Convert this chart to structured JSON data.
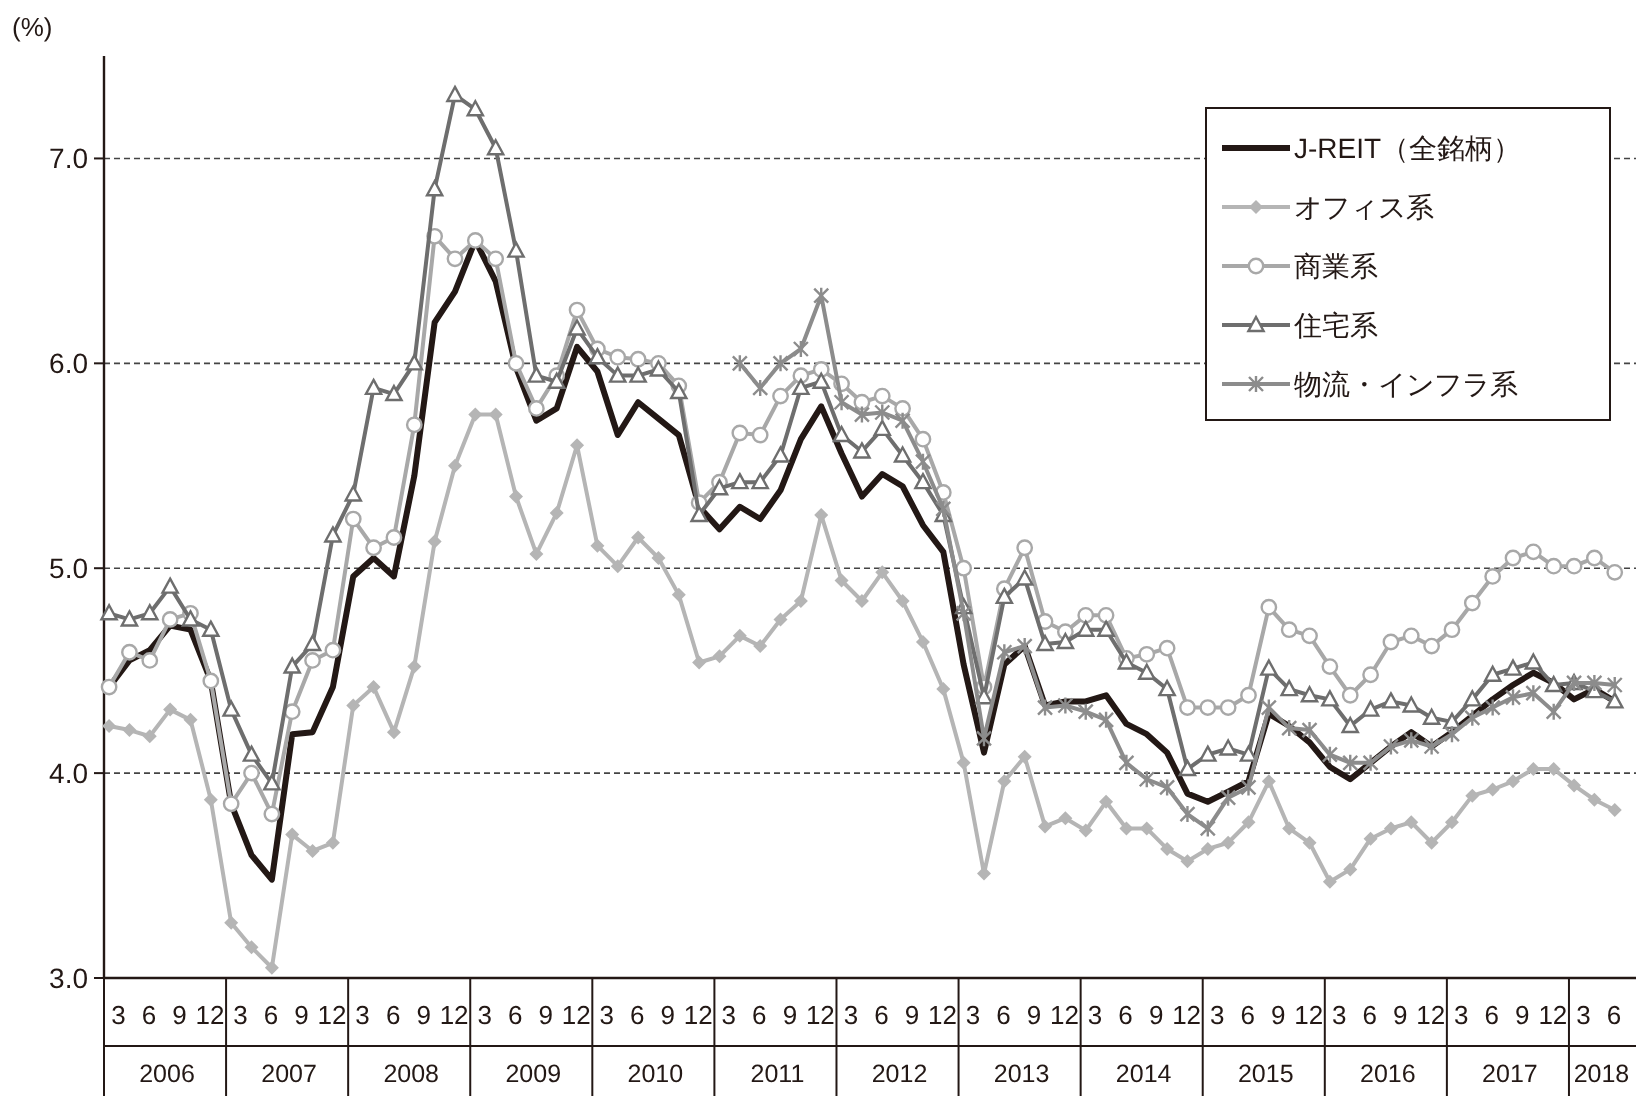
{
  "chart_data": {
    "type": "line",
    "ylabel": "(%)",
    "x": [
      "2006-01",
      "2006-03",
      "2006-05",
      "2006-07",
      "2006-09",
      "2006-11",
      "2007-01",
      "2007-03",
      "2007-05",
      "2007-07",
      "2007-09",
      "2007-11",
      "2008-01",
      "2008-03",
      "2008-05",
      "2008-07",
      "2008-09",
      "2008-11",
      "2009-01",
      "2009-03",
      "2009-05",
      "2009-07",
      "2009-09",
      "2009-11",
      "2010-01",
      "2010-03",
      "2010-05",
      "2010-07",
      "2010-09",
      "2010-11",
      "2011-01",
      "2011-03",
      "2011-05",
      "2011-07",
      "2011-09",
      "2011-11",
      "2012-01",
      "2012-03",
      "2012-05",
      "2012-07",
      "2012-09",
      "2012-11",
      "2013-01",
      "2013-03",
      "2013-05",
      "2013-07",
      "2013-09",
      "2013-11",
      "2014-01",
      "2014-03",
      "2014-05",
      "2014-07",
      "2014-09",
      "2014-11",
      "2015-01",
      "2015-03",
      "2015-05",
      "2015-07",
      "2015-09",
      "2015-11",
      "2016-01",
      "2016-03",
      "2016-05",
      "2016-07",
      "2016-09",
      "2016-11",
      "2017-01",
      "2017-03",
      "2017-05",
      "2017-07",
      "2017-09",
      "2017-11",
      "2018-01",
      "2018-03",
      "2018-05"
    ],
    "series": [
      {
        "name": "J-REIT（全銘柄）",
        "color": "#231815",
        "marker": "none",
        "values": [
          4.42,
          4.55,
          4.6,
          4.72,
          4.7,
          4.45,
          3.85,
          3.6,
          3.48,
          4.19,
          4.2,
          4.42,
          4.96,
          5.05,
          4.96,
          5.45,
          6.2,
          6.35,
          6.6,
          6.4,
          5.98,
          5.72,
          5.78,
          6.08,
          5.96,
          5.65,
          5.81,
          5.73,
          5.65,
          5.3,
          5.19,
          5.3,
          5.24,
          5.38,
          5.63,
          5.79,
          5.56,
          5.35,
          5.46,
          5.4,
          5.21,
          5.08,
          4.53,
          4.1,
          4.53,
          4.62,
          4.33,
          4.35,
          4.35,
          4.38,
          4.24,
          4.19,
          4.1,
          3.9,
          3.86,
          3.91,
          3.96,
          4.29,
          4.23,
          4.15,
          4.03,
          3.97,
          4.05,
          4.13,
          4.2,
          4.13,
          4.2,
          4.28,
          4.36,
          4.43,
          4.49,
          4.44,
          4.36,
          4.41,
          4.35
        ]
      },
      {
        "name": "オフィス系",
        "color": "#b5b5b5",
        "marker": "diamond",
        "values": [
          4.23,
          4.21,
          4.18,
          4.31,
          4.26,
          3.87,
          3.27,
          3.15,
          3.05,
          3.7,
          3.62,
          3.66,
          4.33,
          4.42,
          4.2,
          4.52,
          5.13,
          5.5,
          5.75,
          5.75,
          5.35,
          5.07,
          5.27,
          5.6,
          5.11,
          5.01,
          5.15,
          5.05,
          4.87,
          4.54,
          4.57,
          4.67,
          4.62,
          4.75,
          4.84,
          5.26,
          4.94,
          4.84,
          4.98,
          4.84,
          4.64,
          4.41,
          4.05,
          3.51,
          3.96,
          4.08,
          3.74,
          3.78,
          3.72,
          3.86,
          3.73,
          3.73,
          3.63,
          3.57,
          3.63,
          3.66,
          3.76,
          3.96,
          3.73,
          3.66,
          3.47,
          3.53,
          3.68,
          3.73,
          3.76,
          3.66,
          3.76,
          3.89,
          3.92,
          3.96,
          4.02,
          4.02,
          3.94,
          3.87,
          3.82
        ]
      },
      {
        "name": "商業系",
        "color": "#a8a8a8",
        "marker": "circle",
        "values": [
          4.42,
          4.59,
          4.55,
          4.75,
          4.78,
          4.45,
          3.85,
          4.0,
          3.8,
          4.3,
          4.55,
          4.6,
          5.24,
          5.1,
          5.15,
          5.7,
          6.62,
          6.51,
          6.6,
          6.51,
          6.0,
          5.78,
          5.94,
          6.26,
          6.07,
          6.03,
          6.02,
          6.0,
          5.89,
          5.32,
          5.42,
          5.66,
          5.65,
          5.84,
          5.94,
          5.97,
          5.9,
          5.81,
          5.84,
          5.78,
          5.63,
          5.37,
          5.0,
          4.42,
          4.9,
          5.1,
          4.74,
          4.69,
          4.77,
          4.77,
          4.56,
          4.58,
          4.61,
          4.32,
          4.32,
          4.32,
          4.38,
          4.81,
          4.7,
          4.67,
          4.52,
          4.38,
          4.48,
          4.64,
          4.67,
          4.62,
          4.7,
          4.83,
          4.96,
          5.05,
          5.08,
          5.01,
          5.01,
          5.05,
          4.98
        ]
      },
      {
        "name": "住宅系",
        "color": "#6e6e6e",
        "marker": "triangle",
        "values": [
          4.78,
          4.75,
          4.78,
          4.91,
          4.75,
          4.7,
          4.31,
          4.09,
          3.95,
          4.52,
          4.63,
          5.16,
          5.36,
          5.88,
          5.85,
          6.0,
          6.85,
          7.31,
          7.24,
          7.05,
          6.55,
          5.94,
          5.91,
          6.17,
          6.03,
          5.94,
          5.94,
          5.97,
          5.86,
          5.26,
          5.39,
          5.42,
          5.42,
          5.55,
          5.88,
          5.91,
          5.65,
          5.57,
          5.68,
          5.55,
          5.42,
          5.26,
          4.81,
          4.37,
          4.86,
          4.95,
          4.63,
          4.64,
          4.7,
          4.7,
          4.54,
          4.49,
          4.41,
          4.02,
          4.09,
          4.12,
          4.09,
          4.51,
          4.41,
          4.38,
          4.36,
          4.23,
          4.31,
          4.35,
          4.33,
          4.27,
          4.25,
          4.36,
          4.48,
          4.51,
          4.54,
          4.43,
          4.44,
          4.4,
          4.35
        ]
      },
      {
        "name": "物流・インフラ系",
        "color": "#8c8c8c",
        "marker": "cross",
        "values": [
          null,
          null,
          null,
          null,
          null,
          null,
          null,
          null,
          null,
          null,
          null,
          null,
          null,
          null,
          null,
          null,
          null,
          null,
          null,
          null,
          null,
          null,
          null,
          null,
          null,
          null,
          null,
          null,
          null,
          null,
          null,
          6.0,
          5.88,
          6.0,
          6.07,
          6.33,
          5.81,
          5.75,
          5.76,
          5.72,
          5.52,
          5.29,
          4.78,
          4.17,
          4.59,
          4.62,
          4.32,
          4.33,
          4.3,
          4.26,
          4.05,
          3.97,
          3.93,
          3.8,
          3.73,
          3.88,
          3.93,
          4.32,
          4.22,
          4.21,
          4.09,
          4.05,
          4.05,
          4.13,
          4.16,
          4.13,
          4.19,
          4.27,
          4.32,
          4.37,
          4.39,
          4.3,
          4.44,
          4.44,
          4.43
        ]
      }
    ],
    "xlim": [
      "2006-01-01",
      "2018-07-01"
    ],
    "xticks": [
      {
        "value": "2006-03",
        "label": "3"
      },
      {
        "value": "2006-06",
        "label": "6"
      },
      {
        "value": "2006-09",
        "label": "9"
      },
      {
        "value": "2006-12",
        "label": "12"
      },
      {
        "value": "2007-03",
        "label": "3"
      },
      {
        "value": "2007-06",
        "label": "6"
      },
      {
        "value": "2007-09",
        "label": "9"
      },
      {
        "value": "2007-12",
        "label": "12"
      },
      {
        "value": "2008-03",
        "label": "3"
      },
      {
        "value": "2008-06",
        "label": "6"
      },
      {
        "value": "2008-09",
        "label": "9"
      },
      {
        "value": "2008-12",
        "label": "12"
      },
      {
        "value": "2009-03",
        "label": "3"
      },
      {
        "value": "2009-06",
        "label": "6"
      },
      {
        "value": "2009-09",
        "label": "9"
      },
      {
        "value": "2009-12",
        "label": "12"
      },
      {
        "value": "2010-03",
        "label": "3"
      },
      {
        "value": "2010-06",
        "label": "6"
      },
      {
        "value": "2010-09",
        "label": "9"
      },
      {
        "value": "2010-12",
        "label": "12"
      },
      {
        "value": "2011-03",
        "label": "3"
      },
      {
        "value": "2011-06",
        "label": "6"
      },
      {
        "value": "2011-09",
        "label": "9"
      },
      {
        "value": "2011-12",
        "label": "12"
      },
      {
        "value": "2012-03",
        "label": "3"
      },
      {
        "value": "2012-06",
        "label": "6"
      },
      {
        "value": "2012-09",
        "label": "9"
      },
      {
        "value": "2012-12",
        "label": "12"
      },
      {
        "value": "2013-03",
        "label": "3"
      },
      {
        "value": "2013-06",
        "label": "6"
      },
      {
        "value": "2013-09",
        "label": "9"
      },
      {
        "value": "2013-12",
        "label": "12"
      },
      {
        "value": "2014-03",
        "label": "3"
      },
      {
        "value": "2014-06",
        "label": "6"
      },
      {
        "value": "2014-09",
        "label": "9"
      },
      {
        "value": "2014-12",
        "label": "12"
      },
      {
        "value": "2015-03",
        "label": "3"
      },
      {
        "value": "2015-06",
        "label": "6"
      },
      {
        "value": "2015-09",
        "label": "9"
      },
      {
        "value": "2015-12",
        "label": "12"
      },
      {
        "value": "2016-03",
        "label": "3"
      },
      {
        "value": "2016-06",
        "label": "6"
      },
      {
        "value": "2016-09",
        "label": "9"
      },
      {
        "value": "2016-12",
        "label": "12"
      },
      {
        "value": "2017-03",
        "label": "3"
      },
      {
        "value": "2017-06",
        "label": "6"
      },
      {
        "value": "2017-09",
        "label": "9"
      },
      {
        "value": "2017-12",
        "label": "12"
      },
      {
        "value": "2018-03",
        "label": "3"
      },
      {
        "value": "2018-06",
        "label": "6"
      }
    ],
    "x2lim": [
      "2006-01-01",
      "2018-07-01"
    ],
    "x2ticks": [
      {
        "value": "2006-07-01",
        "label": "2006"
      },
      {
        "value": "2007-07-01",
        "label": "2007"
      },
      {
        "value": "2008-07-01",
        "label": "2008"
      },
      {
        "value": "2009-07-01",
        "label": "2009"
      },
      {
        "value": "2010-07-01",
        "label": "2010"
      },
      {
        "value": "2011-07-01",
        "label": "2011"
      },
      {
        "value": "2012-07-01",
        "label": "2012"
      },
      {
        "value": "2013-07-01",
        "label": "2013"
      },
      {
        "value": "2014-07-01",
        "label": "2014"
      },
      {
        "value": "2015-07-01",
        "label": "2015"
      },
      {
        "value": "2016-07-01",
        "label": "2016"
      },
      {
        "value": "2017-07-01",
        "label": "2017"
      },
      {
        "value": "2018-04-01",
        "label": "2018"
      }
    ],
    "ylim": [
      3,
      7.5
    ],
    "yticks": [
      {
        "value": 3,
        "label": "3.0"
      },
      {
        "value": 4,
        "label": "4.0"
      },
      {
        "value": 5,
        "label": "5.0"
      },
      {
        "value": 6,
        "label": "6.0"
      },
      {
        "value": 7,
        "label": "7.0"
      }
    ],
    "grid": "y",
    "legend": "top right"
  }
}
